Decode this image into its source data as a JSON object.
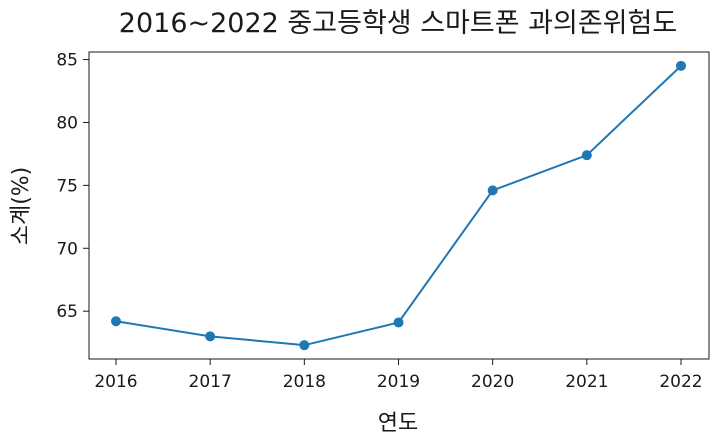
{
  "chart_data": {
    "type": "line",
    "title": "2016~2022 중고등학생 스마트폰 과의존위험도",
    "xlabel": "연도",
    "ylabel": "소계(%)",
    "x": [
      "2016",
      "2017",
      "2018",
      "2019",
      "2020",
      "2021",
      "2022"
    ],
    "series": [
      {
        "values": [
          64.2,
          63.0,
          62.3,
          64.1,
          74.6,
          77.4,
          84.5
        ],
        "color": "#1f77b4"
      }
    ],
    "ylim": [
      61.2,
      85.6
    ],
    "yticks": [
      65,
      70,
      75,
      80,
      85
    ],
    "grid": false
  }
}
